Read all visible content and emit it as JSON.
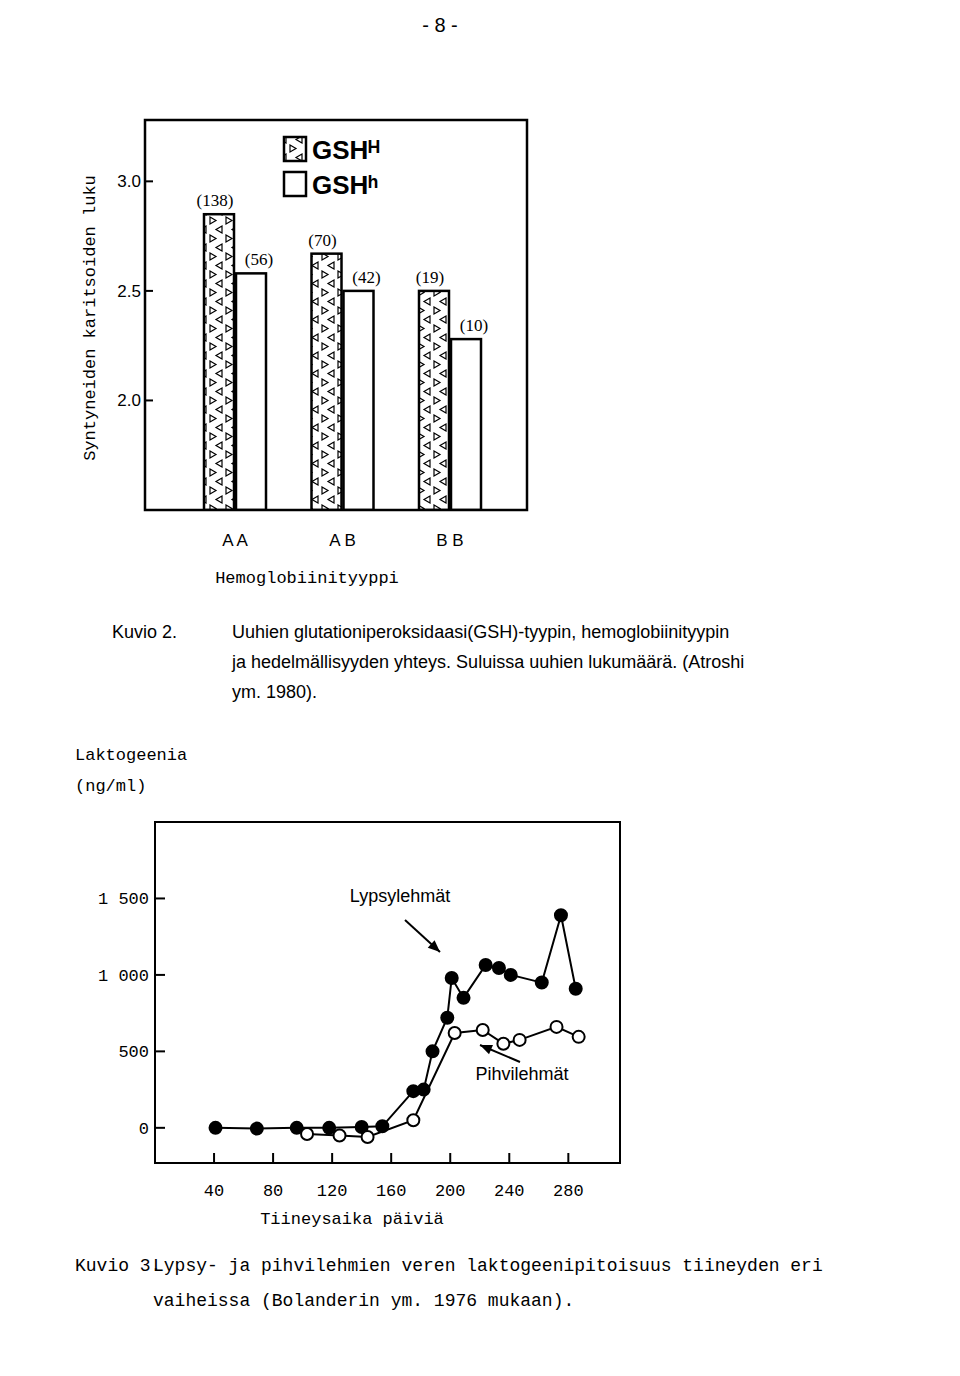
{
  "page_number": "- 8 -",
  "chart_data": [
    {
      "type": "bar",
      "x_label": "Hemoglobiinityyppi",
      "y_label": "Syntyneiden karitsoiden luku",
      "categories": [
        "A A",
        "A B",
        "B B"
      ],
      "series": [
        {
          "name": "GSHᴴ",
          "color": "#ffffff",
          "values": [
            2.85,
            2.67,
            2.5
          ],
          "n_labels": [
            "(138)",
            "(70)",
            "(19)"
          ]
        },
        {
          "name": "GSHʰ",
          "color": "#ffffff",
          "values": [
            2.58,
            2.5,
            2.28
          ],
          "n_labels": [
            "(56)",
            "(42)",
            "(10)"
          ]
        }
      ],
      "ylim": [
        1.5,
        3.28
      ],
      "yticks": [
        {
          "value": 2,
          "label": "2.0"
        },
        {
          "value": 2.5,
          "label": "2.5"
        },
        {
          "value": 3,
          "label": "3.0"
        }
      ],
      "legend": "top",
      "grid": false,
      "caption_label": "Kuvio 2.",
      "caption_lines": [
        "Uuhien glutationiperoksidaasi(GSH)-tyypin, hemoglobiinityypin",
        "ja hedelmällisyyden yhteys. Suluissa uuhien lukumäärä. (Atroshi",
        "ym. 1980)."
      ]
    },
    {
      "type": "line",
      "x_label": "Tiineysaika päiviä",
      "y_label": [
        "Laktogeenia",
        "(ng/ml)"
      ],
      "series": [
        {
          "name": "Lypsylehmät",
          "color": "#000000",
          "marker": "filled-circle",
          "x": [
            41,
            69,
            96,
            118,
            140,
            154,
            175,
            182,
            188,
            198,
            201,
            209,
            224,
            233,
            241,
            262,
            275,
            285
          ],
          "values": [
            0,
            -5,
            0,
            0,
            5,
            10,
            240,
            250,
            500,
            720,
            980,
            850,
            1065,
            1045,
            1000,
            950,
            1390,
            910
          ]
        },
        {
          "name": "Pihvilehmät",
          "color": "#000000",
          "marker": "open-circle",
          "x": [
            103,
            125,
            144,
            175,
            203,
            222,
            236,
            247,
            272,
            287
          ],
          "values": [
            -40,
            -50,
            -60,
            50,
            620,
            640,
            550,
            575,
            660,
            595
          ]
        }
      ],
      "annotations": [
        "Lypsylehmät",
        "Pihvilehmät"
      ],
      "xlim": [
        0,
        315
      ],
      "xticks": [
        40,
        80,
        120,
        160,
        200,
        240,
        280
      ],
      "ylim": [
        -230,
        2000
      ],
      "yticks": [
        0,
        500,
        {
          "value": 1000,
          "label": "1 000"
        },
        {
          "value": 1500,
          "label": "1 500"
        }
      ],
      "grid": false,
      "caption_label": "Kuvio 3.",
      "caption_lines": [
        "Lypsy- ja pihvilehmien veren laktogeenipitoisuus tiineyden eri",
        "vaiheissa (Bolanderin ym. 1976 mukaan)."
      ]
    }
  ]
}
